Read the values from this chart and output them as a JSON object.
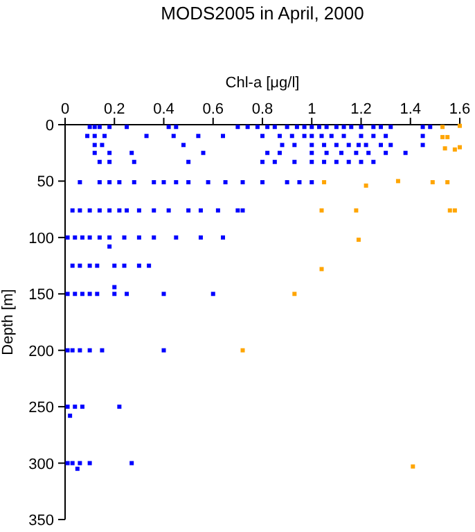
{
  "chart_data": {
    "type": "scatter",
    "title": "MODS2005 in April, 2000",
    "xlabel": "Chl-a [μg/l]",
    "ylabel": "Depth [m]",
    "xlim": [
      0,
      1.6
    ],
    "xticks": [
      0,
      0.2,
      0.4,
      0.6,
      0.8,
      1,
      1.2,
      1.4,
      1.6
    ],
    "ylim": [
      350,
      0
    ],
    "yticks": [
      0,
      50,
      100,
      150,
      200,
      250,
      300,
      350
    ],
    "grid": false,
    "marker": "square",
    "series": [
      {
        "color": "#0000ff",
        "x": [
          0.1,
          0.12,
          0.14,
          0.18,
          0.25,
          0.42,
          0.45,
          0.7,
          0.74,
          0.78,
          0.82,
          0.85,
          0.9,
          0.94,
          0.97,
          1.0,
          1.03,
          1.06,
          1.1,
          1.13,
          1.16,
          1.2,
          1.25,
          1.28,
          1.32,
          1.45,
          1.48,
          0.09,
          0.12,
          0.16,
          0.33,
          0.44,
          0.54,
          0.64,
          0.8,
          0.87,
          0.92,
          0.97,
          1.0,
          1.04,
          1.08,
          1.13,
          1.2,
          1.25,
          1.3,
          1.45,
          0.12,
          0.15,
          0.48,
          0.88,
          0.93,
          1.0,
          1.05,
          1.1,
          1.15,
          1.19,
          1.22,
          1.28,
          1.32,
          1.45,
          0.12,
          0.18,
          0.27,
          0.56,
          0.82,
          0.87,
          1.0,
          1.06,
          1.12,
          1.18,
          1.23,
          1.3,
          1.38,
          0.14,
          0.18,
          0.28,
          0.5,
          0.8,
          0.85,
          0.93,
          1.0,
          1.05,
          1.1,
          1.15,
          1.2,
          1.25,
          0.06,
          0.14,
          0.18,
          0.22,
          0.28,
          0.36,
          0.4,
          0.45,
          0.5,
          0.58,
          0.65,
          0.72,
          0.8,
          0.9,
          0.95,
          1.0,
          0.03,
          0.06,
          0.1,
          0.14,
          0.18,
          0.22,
          0.25,
          0.3,
          0.36,
          0.42,
          0.5,
          0.55,
          0.62,
          0.7,
          0.72,
          0.01,
          0.04,
          0.07,
          0.1,
          0.14,
          0.18,
          0.24,
          0.3,
          0.36,
          0.45,
          0.55,
          0.64,
          0.18,
          0.03,
          0.06,
          0.1,
          0.13,
          0.2,
          0.24,
          0.3,
          0.34,
          0.01,
          0.04,
          0.07,
          0.1,
          0.13,
          0.2,
          0.25,
          0.4,
          0.6,
          0.2,
          0.01,
          0.03,
          0.06,
          0.1,
          0.15,
          0.4,
          0.01,
          0.04,
          0.07,
          0.22,
          0.02,
          0.01,
          0.03,
          0.06,
          0.1,
          0.27,
          0.05
        ],
        "values": [
          2,
          2,
          2,
          2,
          2,
          2,
          2,
          2,
          2,
          2,
          2,
          2,
          2,
          2,
          2,
          2,
          2,
          2,
          2,
          2,
          2,
          2,
          2,
          2,
          2,
          2,
          2,
          10,
          10,
          10,
          10,
          10,
          10,
          10,
          10,
          10,
          10,
          10,
          10,
          10,
          10,
          10,
          10,
          10,
          10,
          10,
          18,
          18,
          18,
          18,
          18,
          18,
          18,
          18,
          18,
          18,
          18,
          18,
          18,
          18,
          25,
          25,
          25,
          25,
          25,
          25,
          25,
          25,
          25,
          25,
          25,
          25,
          25,
          33,
          33,
          33,
          33,
          33,
          33,
          33,
          33,
          33,
          33,
          33,
          33,
          33,
          51,
          51,
          51,
          51,
          51,
          51,
          51,
          51,
          51,
          51,
          51,
          51,
          51,
          51,
          51,
          51,
          76,
          76,
          76,
          76,
          76,
          76,
          76,
          76,
          76,
          76,
          76,
          76,
          76,
          76,
          76,
          100,
          100,
          100,
          100,
          100,
          100,
          100,
          100,
          100,
          100,
          100,
          100,
          108,
          125,
          125,
          125,
          125,
          125,
          125,
          125,
          125,
          150,
          150,
          150,
          150,
          150,
          150,
          150,
          150,
          150,
          144,
          200,
          200,
          200,
          200,
          200,
          200,
          250,
          250,
          250,
          250,
          258,
          300,
          300,
          300,
          300,
          300,
          305
        ]
      },
      {
        "color": "#ffa500",
        "x": [
          1.53,
          1.6,
          1.53,
          1.55,
          1.54,
          1.58,
          1.6,
          1.05,
          1.22,
          1.35,
          1.49,
          1.55,
          1.04,
          1.18,
          1.56,
          1.58,
          1.19,
          1.04,
          0.93,
          0.72,
          1.41
        ],
        "values": [
          2,
          1,
          11,
          11,
          21,
          22,
          20,
          51,
          54,
          50,
          51,
          51,
          76,
          76,
          76,
          76,
          102,
          128,
          150,
          200,
          303
        ]
      }
    ]
  }
}
